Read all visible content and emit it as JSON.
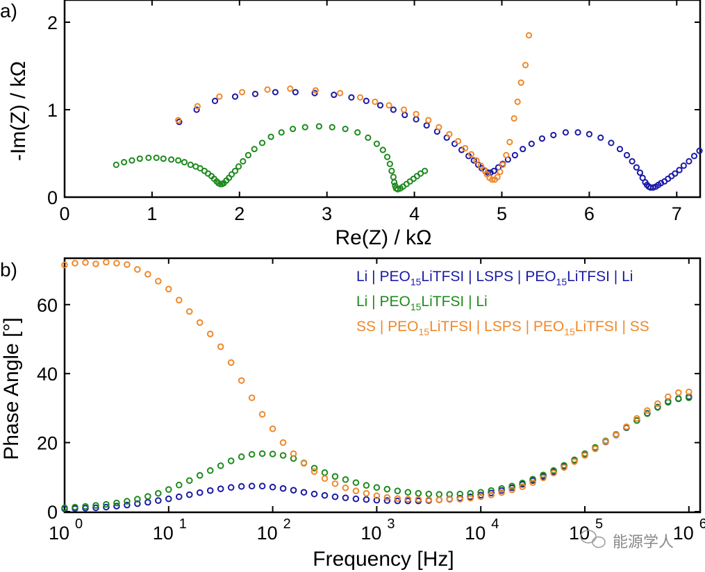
{
  "chart_data": [
    {
      "panel": "a)",
      "type": "scatter",
      "title": "",
      "xlabel": "Re(Z) / kΩ",
      "ylabel": "-Im(Z) / kΩ",
      "xlim": [
        0,
        7.25
      ],
      "ylim": [
        0,
        2.2
      ],
      "x_ticks": [
        0,
        1,
        2,
        3,
        4,
        5,
        6,
        7
      ],
      "y_ticks": [
        0,
        1,
        2
      ],
      "grid": false,
      "marker": "open-circle",
      "series": [
        {
          "name": "Li | PEO15LiTFSI | LSPS | PEO15LiTFSI | Li",
          "color": "#1a1aa6",
          "points": [
            [
              1.31,
              0.86
            ],
            [
              1.51,
              1.0
            ],
            [
              1.72,
              1.1
            ],
            [
              1.95,
              1.15
            ],
            [
              2.18,
              1.18
            ],
            [
              2.41,
              1.2
            ],
            [
              2.64,
              1.2
            ],
            [
              2.86,
              1.19
            ],
            [
              3.08,
              1.17
            ],
            [
              3.28,
              1.14
            ],
            [
              3.45,
              1.1
            ],
            [
              3.61,
              1.05
            ],
            [
              3.76,
              1.0
            ],
            [
              3.89,
              0.94
            ],
            [
              4.02,
              0.89
            ],
            [
              4.14,
              0.82
            ],
            [
              4.26,
              0.75
            ],
            [
              4.37,
              0.68
            ],
            [
              4.46,
              0.61
            ],
            [
              4.54,
              0.54
            ],
            [
              4.62,
              0.47
            ],
            [
              4.68,
              0.42
            ],
            [
              4.73,
              0.37
            ],
            [
              4.77,
              0.33
            ],
            [
              4.81,
              0.3
            ],
            [
              4.84,
              0.28
            ],
            [
              4.87,
              0.28
            ],
            [
              4.91,
              0.3
            ],
            [
              4.96,
              0.34
            ],
            [
              5.01,
              0.38
            ],
            [
              5.07,
              0.43
            ],
            [
              5.15,
              0.48
            ],
            [
              5.24,
              0.55
            ],
            [
              5.34,
              0.61
            ],
            [
              5.46,
              0.67
            ],
            [
              5.59,
              0.71
            ],
            [
              5.73,
              0.74
            ],
            [
              5.87,
              0.74
            ],
            [
              6.0,
              0.72
            ],
            [
              6.13,
              0.68
            ],
            [
              6.25,
              0.62
            ],
            [
              6.35,
              0.55
            ],
            [
              6.43,
              0.48
            ],
            [
              6.49,
              0.41
            ],
            [
              6.54,
              0.34
            ],
            [
              6.58,
              0.28
            ],
            [
              6.61,
              0.22
            ],
            [
              6.64,
              0.17
            ],
            [
              6.66,
              0.14
            ],
            [
              6.68,
              0.12
            ],
            [
              6.7,
              0.11
            ],
            [
              6.73,
              0.11
            ],
            [
              6.76,
              0.12
            ],
            [
              6.79,
              0.14
            ],
            [
              6.82,
              0.16
            ],
            [
              6.86,
              0.18
            ],
            [
              6.9,
              0.21
            ],
            [
              6.94,
              0.24
            ],
            [
              6.98,
              0.27
            ],
            [
              7.03,
              0.31
            ],
            [
              7.08,
              0.36
            ],
            [
              7.14,
              0.41
            ],
            [
              7.2,
              0.47
            ],
            [
              7.26,
              0.53
            ]
          ]
        },
        {
          "name": "Li | PEO15LiTFSI | Li",
          "color": "#1e8a1e",
          "points": [
            [
              0.59,
              0.37
            ],
            [
              0.68,
              0.4
            ],
            [
              0.77,
              0.42
            ],
            [
              0.86,
              0.44
            ],
            [
              0.96,
              0.45
            ],
            [
              1.05,
              0.45
            ],
            [
              1.13,
              0.44
            ],
            [
              1.22,
              0.43
            ],
            [
              1.3,
              0.42
            ],
            [
              1.37,
              0.4
            ],
            [
              1.44,
              0.37
            ],
            [
              1.5,
              0.35
            ],
            [
              1.55,
              0.33
            ],
            [
              1.6,
              0.3
            ],
            [
              1.64,
              0.27
            ],
            [
              1.68,
              0.24
            ],
            [
              1.71,
              0.21
            ],
            [
              1.74,
              0.18
            ],
            [
              1.76,
              0.16
            ],
            [
              1.78,
              0.15
            ],
            [
              1.8,
              0.15
            ],
            [
              1.82,
              0.16
            ],
            [
              1.85,
              0.19
            ],
            [
              1.88,
              0.22
            ],
            [
              1.91,
              0.26
            ],
            [
              1.95,
              0.3
            ],
            [
              1.99,
              0.35
            ],
            [
              2.04,
              0.41
            ],
            [
              2.1,
              0.48
            ],
            [
              2.17,
              0.55
            ],
            [
              2.26,
              0.62
            ],
            [
              2.36,
              0.69
            ],
            [
              2.48,
              0.74
            ],
            [
              2.61,
              0.78
            ],
            [
              2.75,
              0.8
            ],
            [
              2.91,
              0.81
            ],
            [
              3.06,
              0.8
            ],
            [
              3.21,
              0.78
            ],
            [
              3.35,
              0.74
            ],
            [
              3.47,
              0.68
            ],
            [
              3.57,
              0.61
            ],
            [
              3.64,
              0.54
            ],
            [
              3.69,
              0.46
            ],
            [
              3.72,
              0.38
            ],
            [
              3.74,
              0.3
            ],
            [
              3.76,
              0.23
            ],
            [
              3.77,
              0.17
            ],
            [
              3.78,
              0.13
            ],
            [
              3.79,
              0.1
            ],
            [
              3.81,
              0.09
            ],
            [
              3.84,
              0.1
            ],
            [
              3.87,
              0.12
            ],
            [
              3.91,
              0.15
            ],
            [
              3.95,
              0.18
            ],
            [
              3.99,
              0.21
            ],
            [
              4.03,
              0.24
            ],
            [
              4.07,
              0.27
            ],
            [
              4.12,
              0.3
            ]
          ]
        },
        {
          "name": "SS | PEO15LiTFSI | LSPS | PEO15LiTFSI | SS",
          "color": "#f0882a",
          "points": [
            [
              1.3,
              0.88
            ],
            [
              1.52,
              1.04
            ],
            [
              1.77,
              1.15
            ],
            [
              2.03,
              1.2
            ],
            [
              2.32,
              1.23
            ],
            [
              2.58,
              1.24
            ],
            [
              2.87,
              1.22
            ],
            [
              3.15,
              1.19
            ],
            [
              3.38,
              1.14
            ],
            [
              3.55,
              1.09
            ],
            [
              3.71,
              1.05
            ],
            [
              3.88,
              1.0
            ],
            [
              4.02,
              0.95
            ],
            [
              4.16,
              0.88
            ],
            [
              4.28,
              0.8
            ],
            [
              4.4,
              0.72
            ],
            [
              4.5,
              0.64
            ],
            [
              4.58,
              0.56
            ],
            [
              4.65,
              0.49
            ],
            [
              4.71,
              0.42
            ],
            [
              4.76,
              0.36
            ],
            [
              4.8,
              0.31
            ],
            [
              4.83,
              0.26
            ],
            [
              4.86,
              0.22
            ],
            [
              4.89,
              0.2
            ],
            [
              4.92,
              0.2
            ],
            [
              4.95,
              0.23
            ],
            [
              4.98,
              0.29
            ],
            [
              5.01,
              0.37
            ],
            [
              5.05,
              0.48
            ],
            [
              5.09,
              0.63
            ],
            [
              5.14,
              0.9
            ],
            [
              5.18,
              1.09
            ],
            [
              5.22,
              1.31
            ],
            [
              5.27,
              1.51
            ],
            [
              5.31,
              1.85
            ]
          ]
        }
      ]
    },
    {
      "panel": "b)",
      "type": "scatter",
      "title": "",
      "xlabel": "Frequency [Hz]",
      "ylabel": "Phase Angle [°]",
      "xscale": "log",
      "xlim": [
        1,
        1000000
      ],
      "ylim": [
        0,
        74
      ],
      "x_ticks": [
        "10^0",
        "10^1",
        "10^2",
        "10^3",
        "10^4",
        "10^5",
        "10^6"
      ],
      "y_ticks": [
        0,
        20,
        40,
        60
      ],
      "grid": false,
      "legend_position": "top-right",
      "marker": "open-circle",
      "log10_frequency": [
        0.0,
        0.1,
        0.2,
        0.3,
        0.4,
        0.5,
        0.6,
        0.7,
        0.8,
        0.9,
        1.0,
        1.1,
        1.2,
        1.3,
        1.4,
        1.5,
        1.6,
        1.7,
        1.8,
        1.9,
        2.0,
        2.1,
        2.2,
        2.3,
        2.4,
        2.5,
        2.6,
        2.7,
        2.8,
        2.9,
        3.0,
        3.1,
        3.2,
        3.3,
        3.4,
        3.5,
        3.6,
        3.7,
        3.8,
        3.9,
        4.0,
        4.1,
        4.2,
        4.3,
        4.4,
        4.5,
        4.6,
        4.7,
        4.8,
        4.9,
        5.0,
        5.1,
        5.2,
        5.3,
        5.4,
        5.5,
        5.6,
        5.7,
        5.8,
        5.9,
        6.0
      ],
      "series": [
        {
          "name": "Li | PEO15LiTFSI | LSPS | PEO15LiTFSI | Li",
          "color": "#1a1aa6",
          "values": [
            0.8,
            0.9,
            1.0,
            1.1,
            1.3,
            1.6,
            1.9,
            2.3,
            2.7,
            3.2,
            3.7,
            4.3,
            4.9,
            5.5,
            6.1,
            6.6,
            7.0,
            7.3,
            7.4,
            7.4,
            7.1,
            6.7,
            6.2,
            5.6,
            5.1,
            4.7,
            4.3,
            4.0,
            3.7,
            3.5,
            3.3,
            3.2,
            3.1,
            3.1,
            3.1,
            3.2,
            3.4,
            3.6,
            3.9,
            4.3,
            4.8,
            5.4,
            6.1,
            6.9,
            7.9,
            9.0,
            10.2,
            11.6,
            13.1,
            14.7,
            16.4,
            18.3,
            20.2,
            22.2,
            24.3,
            26.4,
            28.5,
            30.3,
            31.9,
            32.7,
            33.3
          ]
        },
        {
          "name": "Li | PEO15LiTFSI | Li",
          "color": "#1e8a1e",
          "values": [
            1.1,
            1.3,
            1.5,
            1.8,
            2.1,
            2.5,
            3.0,
            3.6,
            4.4,
            5.3,
            6.4,
            7.7,
            9.0,
            10.5,
            11.9,
            13.3,
            14.7,
            15.9,
            16.6,
            16.8,
            16.7,
            16.3,
            15.4,
            14.1,
            12.6,
            11.3,
            10.2,
            9.3,
            8.4,
            7.6,
            7.0,
            6.5,
            6.0,
            5.6,
            5.3,
            5.1,
            5.0,
            5.0,
            5.1,
            5.3,
            5.6,
            6.1,
            6.7,
            7.4,
            8.3,
            9.4,
            10.6,
            11.9,
            13.4,
            15.0,
            16.8,
            18.6,
            20.5,
            22.4,
            24.4,
            26.4,
            28.4,
            30.2,
            31.7,
            32.8,
            33.0
          ]
        },
        {
          "name": "SS | PEO15LiTFSI | LSPS | PEO15LiTFSI | SS",
          "color": "#f0882a",
          "values": [
            71.5,
            72.0,
            72.2,
            71.8,
            72.3,
            72.0,
            71.6,
            70.2,
            68.8,
            66.8,
            64.5,
            61.3,
            58.0,
            54.8,
            51.5,
            47.8,
            43.2,
            38.0,
            33.0,
            28.2,
            24.0,
            20.0,
            16.8,
            14.0,
            11.6,
            9.6,
            8.1,
            6.9,
            6.0,
            5.3,
            4.6,
            4.1,
            3.8,
            3.6,
            3.5,
            3.4,
            3.4,
            3.5,
            3.6,
            3.9,
            4.3,
            4.8,
            5.5,
            6.3,
            7.2,
            8.4,
            9.8,
            11.2,
            12.8,
            14.5,
            16.3,
            18.2,
            20.3,
            22.3,
            24.6,
            27.0,
            29.3,
            31.3,
            33.3,
            34.5,
            34.7
          ]
        }
      ],
      "legend": [
        {
          "parts": [
            "Li | PEO",
            "15",
            "LiTFSI | LSPS | PEO",
            "15",
            "LiTFSI | Li"
          ],
          "color": "#1a1aa6"
        },
        {
          "parts": [
            "Li | PEO",
            "15",
            "LiTFSI | Li"
          ],
          "color": "#1e8a1e"
        },
        {
          "parts": [
            "SS | PEO",
            "15",
            "LiTFSI | LSPS | PEO",
            "15",
            "LiTFSI | SS"
          ],
          "color": "#f0882a"
        }
      ]
    }
  ],
  "watermark": {
    "text": "能源学人",
    "icon": "wechat-icon"
  }
}
